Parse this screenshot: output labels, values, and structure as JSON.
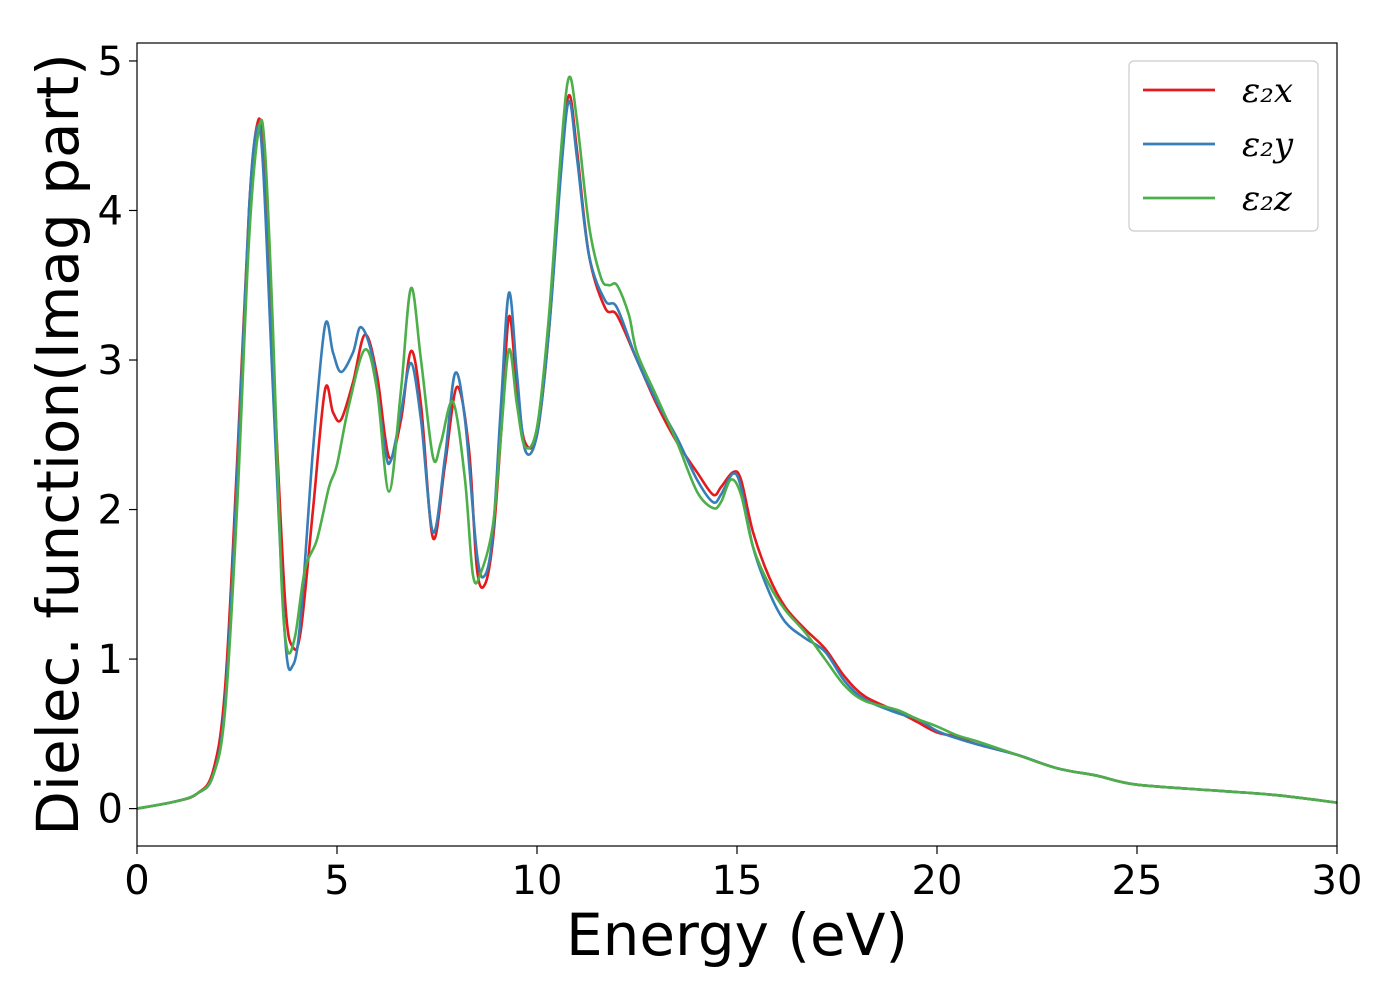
{
  "chart_data": {
    "type": "line",
    "title": "",
    "xlabel": "Energy (eV)",
    "ylabel": "Dielec. function(Imag part)",
    "xlim": [
      0,
      30
    ],
    "ylim": [
      -0.25,
      5.12
    ],
    "xticks": [
      0,
      5,
      10,
      15,
      20,
      25,
      30
    ],
    "xtick_labels": [
      "0",
      "5",
      "10",
      "15",
      "20",
      "25",
      "30"
    ],
    "yticks": [
      0,
      1,
      2,
      3,
      4,
      5
    ],
    "ytick_labels": [
      "0",
      "1",
      "2",
      "3",
      "4",
      "5"
    ],
    "grid": false,
    "legend_position": "top-right",
    "series": [
      {
        "name": "ε₂x",
        "color": "#e41a1c",
        "points": [
          [
            0,
            0
          ],
          [
            1,
            0.05
          ],
          [
            1.5,
            0.1
          ],
          [
            1.9,
            0.25
          ],
          [
            2.2,
            0.8
          ],
          [
            2.5,
            2.3
          ],
          [
            2.8,
            4.0
          ],
          [
            3.0,
            4.57
          ],
          [
            3.15,
            4.4
          ],
          [
            3.4,
            3.0
          ],
          [
            3.7,
            1.4
          ],
          [
            3.9,
            1.08
          ],
          [
            4.1,
            1.2
          ],
          [
            4.4,
            2.0
          ],
          [
            4.7,
            2.8
          ],
          [
            4.9,
            2.65
          ],
          [
            5.1,
            2.6
          ],
          [
            5.4,
            2.85
          ],
          [
            5.7,
            3.17
          ],
          [
            6.0,
            2.9
          ],
          [
            6.3,
            2.35
          ],
          [
            6.6,
            2.6
          ],
          [
            6.85,
            3.06
          ],
          [
            7.1,
            2.7
          ],
          [
            7.4,
            1.81
          ],
          [
            7.7,
            2.3
          ],
          [
            8.0,
            2.82
          ],
          [
            8.3,
            2.4
          ],
          [
            8.5,
            1.6
          ],
          [
            8.7,
            1.5
          ],
          [
            8.9,
            1.8
          ],
          [
            9.1,
            2.5
          ],
          [
            9.3,
            3.29
          ],
          [
            9.5,
            2.8
          ],
          [
            9.7,
            2.45
          ],
          [
            10.0,
            2.5
          ],
          [
            10.3,
            3.2
          ],
          [
            10.6,
            4.3
          ],
          [
            10.8,
            4.77
          ],
          [
            11.0,
            4.4
          ],
          [
            11.3,
            3.7
          ],
          [
            11.7,
            3.35
          ],
          [
            12.0,
            3.3
          ],
          [
            12.5,
            3.0
          ],
          [
            13.0,
            2.7
          ],
          [
            13.5,
            2.45
          ],
          [
            14.0,
            2.25
          ],
          [
            14.4,
            2.1
          ],
          [
            14.6,
            2.15
          ],
          [
            14.9,
            2.25
          ],
          [
            15.1,
            2.2
          ],
          [
            15.4,
            1.85
          ],
          [
            15.8,
            1.55
          ],
          [
            16.2,
            1.35
          ],
          [
            16.7,
            1.2
          ],
          [
            17.2,
            1.07
          ],
          [
            17.7,
            0.88
          ],
          [
            18.2,
            0.75
          ],
          [
            19.0,
            0.65
          ],
          [
            19.5,
            0.58
          ],
          [
            20.0,
            0.51
          ],
          [
            20.5,
            0.48
          ],
          [
            21.0,
            0.43
          ],
          [
            22.0,
            0.36
          ],
          [
            23.0,
            0.27
          ],
          [
            24.0,
            0.22
          ],
          [
            25.0,
            0.16
          ],
          [
            27.0,
            0.12
          ],
          [
            28.5,
            0.09
          ],
          [
            30.0,
            0.04
          ]
        ]
      },
      {
        "name": "ε₂y",
        "color": "#377eb8",
        "points": [
          [
            0,
            0
          ],
          [
            1,
            0.05
          ],
          [
            1.5,
            0.1
          ],
          [
            1.9,
            0.22
          ],
          [
            2.2,
            0.7
          ],
          [
            2.5,
            2.2
          ],
          [
            2.8,
            4.0
          ],
          [
            3.0,
            4.55
          ],
          [
            3.15,
            4.3
          ],
          [
            3.4,
            2.8
          ],
          [
            3.7,
            1.15
          ],
          [
            3.9,
            0.96
          ],
          [
            4.1,
            1.3
          ],
          [
            4.4,
            2.4
          ],
          [
            4.7,
            3.23
          ],
          [
            4.9,
            3.05
          ],
          [
            5.1,
            2.92
          ],
          [
            5.4,
            3.05
          ],
          [
            5.6,
            3.22
          ],
          [
            5.9,
            3.0
          ],
          [
            6.2,
            2.4
          ],
          [
            6.35,
            2.33
          ],
          [
            6.6,
            2.65
          ],
          [
            6.85,
            2.98
          ],
          [
            7.1,
            2.6
          ],
          [
            7.4,
            1.85
          ],
          [
            7.7,
            2.35
          ],
          [
            7.95,
            2.91
          ],
          [
            8.2,
            2.6
          ],
          [
            8.5,
            1.7
          ],
          [
            8.7,
            1.56
          ],
          [
            8.9,
            1.85
          ],
          [
            9.1,
            2.7
          ],
          [
            9.3,
            3.45
          ],
          [
            9.5,
            2.9
          ],
          [
            9.7,
            2.4
          ],
          [
            10.0,
            2.5
          ],
          [
            10.3,
            3.2
          ],
          [
            10.6,
            4.25
          ],
          [
            10.8,
            4.73
          ],
          [
            11.0,
            4.35
          ],
          [
            11.3,
            3.7
          ],
          [
            11.7,
            3.4
          ],
          [
            12.0,
            3.35
          ],
          [
            12.5,
            3.0
          ],
          [
            13.0,
            2.72
          ],
          [
            13.5,
            2.48
          ],
          [
            14.0,
            2.2
          ],
          [
            14.4,
            2.05
          ],
          [
            14.6,
            2.1
          ],
          [
            14.9,
            2.24
          ],
          [
            15.1,
            2.15
          ],
          [
            15.4,
            1.75
          ],
          [
            15.8,
            1.45
          ],
          [
            16.2,
            1.25
          ],
          [
            16.7,
            1.14
          ],
          [
            17.2,
            1.05
          ],
          [
            17.7,
            0.85
          ],
          [
            18.2,
            0.73
          ],
          [
            19.0,
            0.64
          ],
          [
            19.5,
            0.6
          ],
          [
            20.0,
            0.52
          ],
          [
            20.5,
            0.47
          ],
          [
            21.0,
            0.43
          ],
          [
            22.0,
            0.36
          ],
          [
            23.0,
            0.27
          ],
          [
            24.0,
            0.22
          ],
          [
            25.0,
            0.16
          ],
          [
            27.0,
            0.12
          ],
          [
            28.5,
            0.09
          ],
          [
            30.0,
            0.04
          ]
        ]
      },
      {
        "name": "ε₂z",
        "color": "#4daf4a",
        "points": [
          [
            0,
            0
          ],
          [
            1,
            0.05
          ],
          [
            1.5,
            0.1
          ],
          [
            1.9,
            0.22
          ],
          [
            2.2,
            0.65
          ],
          [
            2.5,
            2.0
          ],
          [
            2.8,
            3.8
          ],
          [
            3.05,
            4.55
          ],
          [
            3.2,
            4.4
          ],
          [
            3.4,
            3.2
          ],
          [
            3.6,
            1.6
          ],
          [
            3.75,
            1.07
          ],
          [
            3.95,
            1.15
          ],
          [
            4.2,
            1.6
          ],
          [
            4.5,
            1.8
          ],
          [
            4.8,
            2.15
          ],
          [
            5.0,
            2.3
          ],
          [
            5.3,
            2.7
          ],
          [
            5.7,
            3.07
          ],
          [
            6.0,
            2.8
          ],
          [
            6.3,
            2.12
          ],
          [
            6.6,
            2.8
          ],
          [
            6.85,
            3.48
          ],
          [
            7.1,
            3.0
          ],
          [
            7.4,
            2.35
          ],
          [
            7.6,
            2.45
          ],
          [
            7.9,
            2.72
          ],
          [
            8.2,
            2.2
          ],
          [
            8.4,
            1.56
          ],
          [
            8.6,
            1.58
          ],
          [
            8.9,
            1.9
          ],
          [
            9.1,
            2.5
          ],
          [
            9.3,
            3.07
          ],
          [
            9.5,
            2.7
          ],
          [
            9.7,
            2.42
          ],
          [
            10.0,
            2.55
          ],
          [
            10.3,
            3.3
          ],
          [
            10.6,
            4.4
          ],
          [
            10.8,
            4.89
          ],
          [
            11.0,
            4.6
          ],
          [
            11.3,
            3.9
          ],
          [
            11.6,
            3.55
          ],
          [
            11.8,
            3.5
          ],
          [
            12.0,
            3.5
          ],
          [
            12.3,
            3.3
          ],
          [
            12.5,
            3.05
          ],
          [
            13.0,
            2.75
          ],
          [
            13.5,
            2.45
          ],
          [
            14.0,
            2.12
          ],
          [
            14.4,
            2.01
          ],
          [
            14.6,
            2.05
          ],
          [
            14.85,
            2.2
          ],
          [
            15.1,
            2.1
          ],
          [
            15.4,
            1.75
          ],
          [
            15.8,
            1.5
          ],
          [
            16.2,
            1.33
          ],
          [
            16.7,
            1.18
          ],
          [
            17.2,
            1.0
          ],
          [
            17.7,
            0.82
          ],
          [
            18.2,
            0.72
          ],
          [
            19.0,
            0.66
          ],
          [
            19.5,
            0.6
          ],
          [
            20.0,
            0.55
          ],
          [
            20.5,
            0.49
          ],
          [
            21.0,
            0.45
          ],
          [
            22.0,
            0.36
          ],
          [
            23.0,
            0.27
          ],
          [
            24.0,
            0.22
          ],
          [
            25.0,
            0.16
          ],
          [
            27.0,
            0.12
          ],
          [
            28.5,
            0.09
          ],
          [
            30.0,
            0.04
          ]
        ]
      }
    ]
  }
}
